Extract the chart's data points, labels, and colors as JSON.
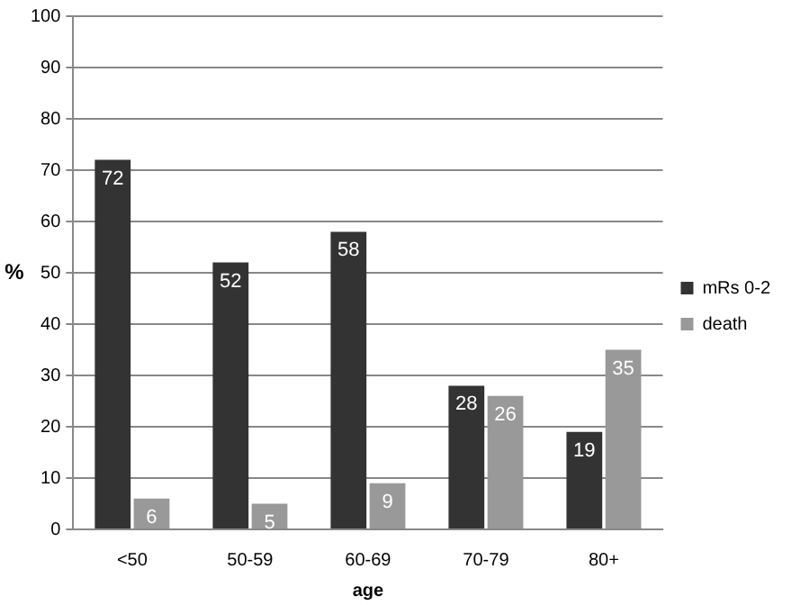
{
  "chart_data": {
    "type": "bar",
    "xlabel": "age",
    "ylabel": "%",
    "categories": [
      "<50",
      "50-59",
      "60-69",
      "70-79",
      "80+"
    ],
    "series": [
      {
        "name": "mRs 0-2",
        "color": "#333333",
        "values": [
          72,
          52,
          58,
          28,
          19
        ]
      },
      {
        "name": "death",
        "color": "#999999",
        "values": [
          6,
          5,
          9,
          26,
          35
        ]
      }
    ],
    "ylim": [
      0,
      100
    ],
    "yticks": [
      0,
      10,
      20,
      30,
      40,
      50,
      60,
      70,
      80,
      90,
      100
    ],
    "grid": "y",
    "legend": "right",
    "data_labels": true
  }
}
